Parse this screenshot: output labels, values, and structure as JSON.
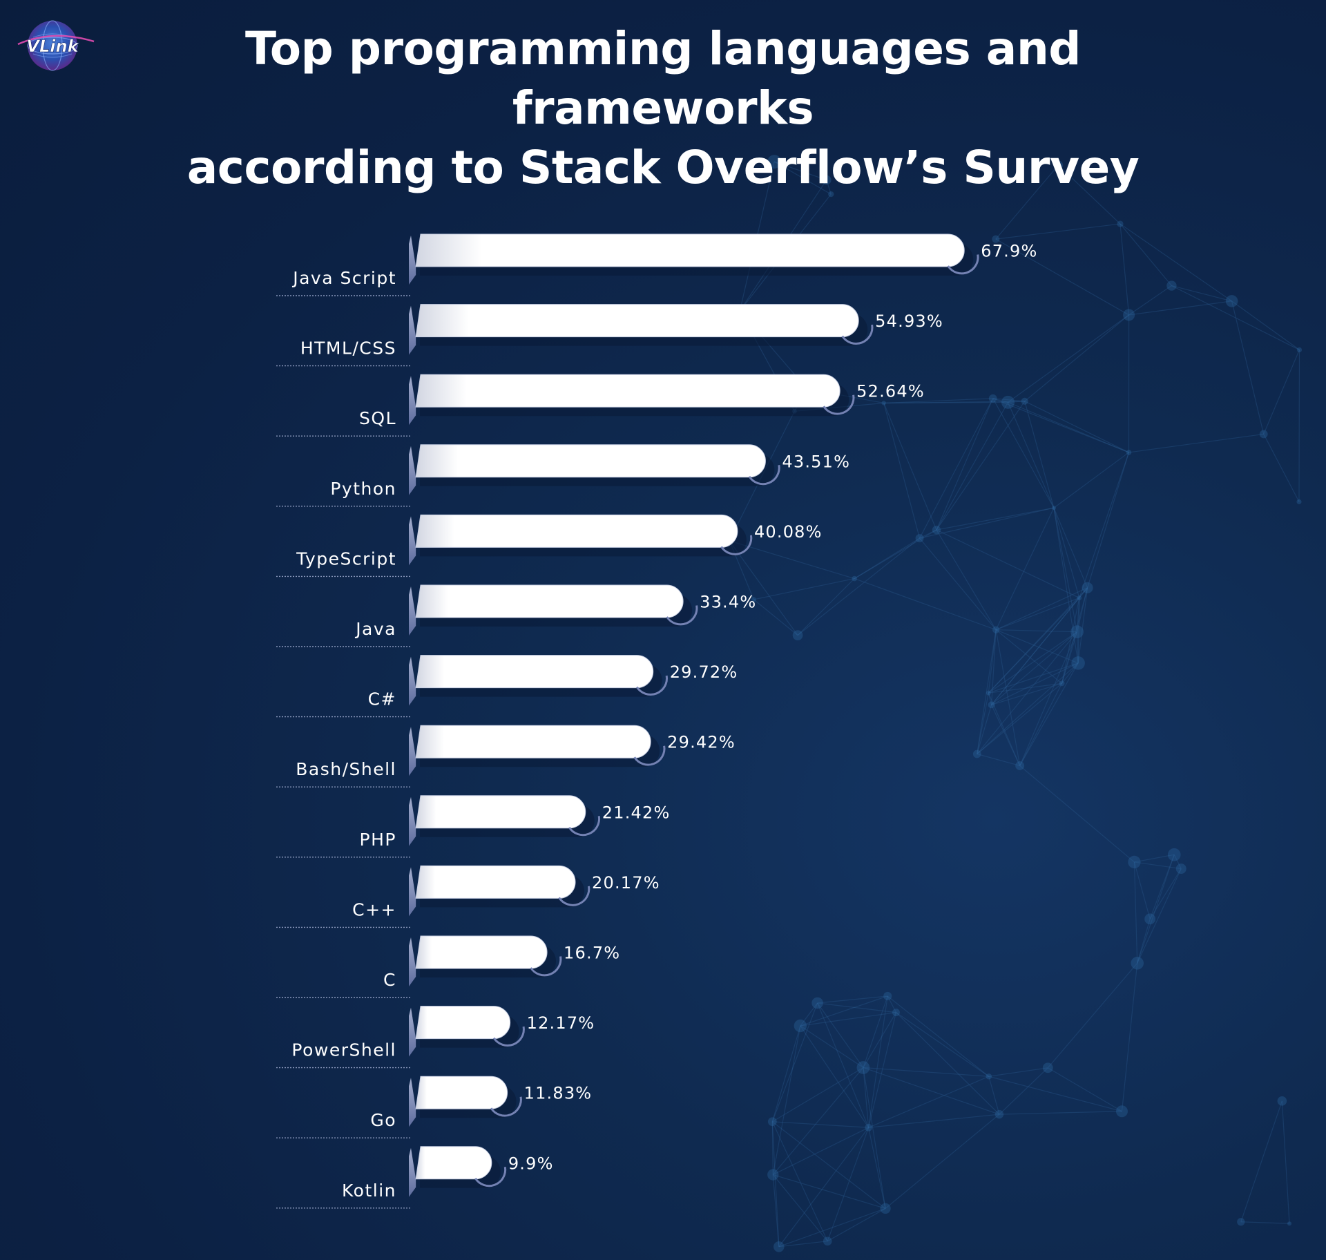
{
  "header": {
    "logo_text": "VLink",
    "title_line1": "Top programming languages and frameworks",
    "title_line2": "according to Stack Overflow’s Survey"
  },
  "colors": {
    "background": "#0c2144",
    "bar": "#ffffff",
    "bar_shadow": "#9aa6c8",
    "text": "#ffffff"
  },
  "chart_data": {
    "type": "bar",
    "orientation": "horizontal",
    "title": "Top programming languages and frameworks according to Stack Overflow’s Survey",
    "xlabel": "",
    "ylabel": "",
    "xlim": [
      0,
      100
    ],
    "grid": false,
    "legend": "none",
    "categories": [
      "Java Script",
      "HTML/CSS",
      "SQL",
      "Python",
      "TypeScript",
      "Java",
      "C#",
      "Bash/Shell",
      "PHP",
      "C++",
      "C",
      "PowerShell",
      "Go",
      "Kotlin"
    ],
    "values": [
      67.9,
      54.93,
      52.64,
      43.51,
      40.08,
      33.4,
      29.72,
      29.42,
      21.42,
      20.17,
      16.7,
      12.17,
      11.83,
      9.9
    ],
    "value_labels": [
      "67.9%",
      "54.93%",
      "52.64%",
      "43.51%",
      "40.08%",
      "33.4%",
      "29.72%",
      "29.42%",
      "21.42%",
      "20.17%",
      "16.7%",
      "12.17%",
      "11.83%",
      "9.9%"
    ]
  }
}
